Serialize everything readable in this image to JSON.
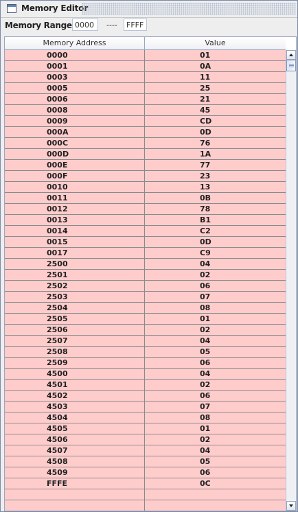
{
  "window": {
    "title": "Memory Editor"
  },
  "range": {
    "label": "Memory Range:",
    "from": "0000",
    "separator": "----",
    "to": "FFFF"
  },
  "table": {
    "columns": [
      "Memory Address",
      "Value"
    ],
    "rows": [
      {
        "address": "0000",
        "value": "01"
      },
      {
        "address": "0001",
        "value": "0A"
      },
      {
        "address": "0003",
        "value": "11"
      },
      {
        "address": "0005",
        "value": "25"
      },
      {
        "address": "0006",
        "value": "21"
      },
      {
        "address": "0008",
        "value": "45"
      },
      {
        "address": "0009",
        "value": "CD"
      },
      {
        "address": "000A",
        "value": "0D"
      },
      {
        "address": "000C",
        "value": "76"
      },
      {
        "address": "000D",
        "value": "1A"
      },
      {
        "address": "000E",
        "value": "77"
      },
      {
        "address": "000F",
        "value": "23"
      },
      {
        "address": "0010",
        "value": "13"
      },
      {
        "address": "0011",
        "value": "0B"
      },
      {
        "address": "0012",
        "value": "78"
      },
      {
        "address": "0013",
        "value": "B1"
      },
      {
        "address": "0014",
        "value": "C2"
      },
      {
        "address": "0015",
        "value": "0D"
      },
      {
        "address": "0017",
        "value": "C9"
      },
      {
        "address": "2500",
        "value": "04"
      },
      {
        "address": "2501",
        "value": "02"
      },
      {
        "address": "2502",
        "value": "06"
      },
      {
        "address": "2503",
        "value": "07"
      },
      {
        "address": "2504",
        "value": "08"
      },
      {
        "address": "2505",
        "value": "01"
      },
      {
        "address": "2506",
        "value": "02"
      },
      {
        "address": "2507",
        "value": "04"
      },
      {
        "address": "2508",
        "value": "05"
      },
      {
        "address": "2509",
        "value": "06"
      },
      {
        "address": "4500",
        "value": "04"
      },
      {
        "address": "4501",
        "value": "02"
      },
      {
        "address": "4502",
        "value": "06"
      },
      {
        "address": "4503",
        "value": "07"
      },
      {
        "address": "4504",
        "value": "08"
      },
      {
        "address": "4505",
        "value": "01"
      },
      {
        "address": "4506",
        "value": "02"
      },
      {
        "address": "4507",
        "value": "04"
      },
      {
        "address": "4508",
        "value": "05"
      },
      {
        "address": "4509",
        "value": "06"
      },
      {
        "address": "FFFE",
        "value": "0C"
      }
    ],
    "empty_rows": 2
  },
  "colors": {
    "row_background": "#ffcccc",
    "grid_line": "#8a8a8a"
  },
  "icons": {
    "window": "window-icon",
    "scroll_up": "scroll-up-arrow-icon",
    "scroll_down": "scroll-down-arrow-icon"
  }
}
